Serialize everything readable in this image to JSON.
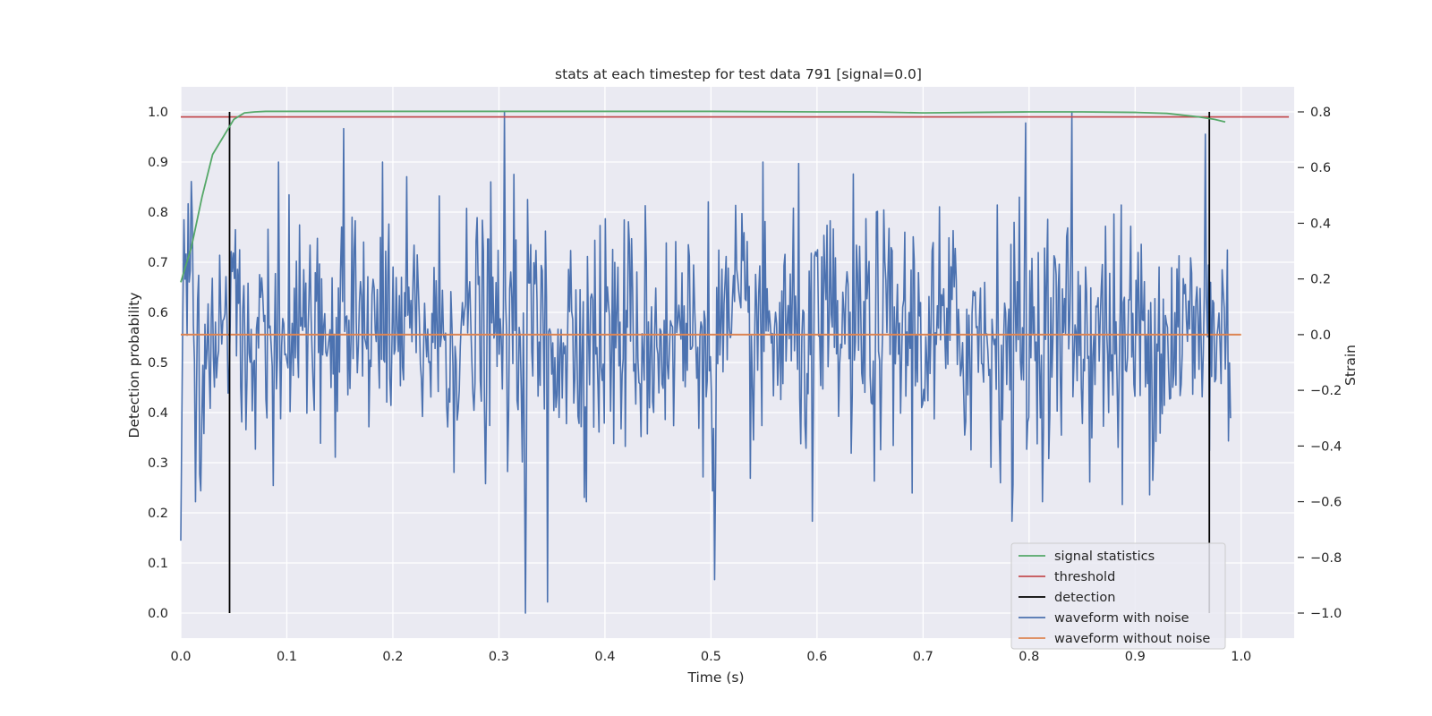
{
  "chart_data": {
    "type": "line",
    "title": "stats at each timestep for test data 791 [signal=0.0]",
    "xlabel": "Time (s)",
    "ylabel_left": "Detection probability",
    "ylabel_right": "Strain",
    "xlim": [
      0.0,
      1.05
    ],
    "ylim_left": [
      -0.05,
      1.05
    ],
    "ylim_right": [
      -1.09,
      0.89
    ],
    "x_ticks": [
      "0.0",
      "0.1",
      "0.2",
      "0.3",
      "0.4",
      "0.5",
      "0.6",
      "0.7",
      "0.8",
      "0.9",
      "1.0"
    ],
    "y_ticks_left": [
      "0.0",
      "0.1",
      "0.2",
      "0.3",
      "0.4",
      "0.5",
      "0.6",
      "0.7",
      "0.8",
      "0.9",
      "1.0"
    ],
    "y_ticks_right": [
      "−1.0",
      "−0.8",
      "−0.6",
      "−0.4",
      "−0.2",
      "0.0",
      "0.2",
      "0.4",
      "0.6",
      "0.8"
    ],
    "grid": true,
    "legend_position": "lower-right",
    "colors": {
      "background": "#eaeaf2",
      "grid": "#ffffff",
      "signal_statistics": "#55a868",
      "threshold": "#c44e52",
      "detection": "#000000",
      "waveform_with_noise": "#4c72b0",
      "waveform_without_noise": "#dd8452"
    },
    "series": [
      {
        "name": "signal statistics",
        "axis": "left",
        "x": [
          0.0,
          0.01,
          0.02,
          0.03,
          0.04,
          0.05,
          0.06,
          0.07,
          0.08,
          0.1,
          0.2,
          0.3,
          0.4,
          0.5,
          0.6,
          0.65,
          0.7,
          0.75,
          0.8,
          0.85,
          0.9,
          0.93,
          0.96,
          0.975,
          0.985
        ],
        "y": [
          0.66,
          0.73,
          0.83,
          0.915,
          0.95,
          0.985,
          0.998,
          1.0,
          1.001,
          1.001,
          1.001,
          1.001,
          1.001,
          1.001,
          1.0,
          1.0,
          0.998,
          0.999,
          1.0,
          1.0,
          0.999,
          0.997,
          0.99,
          0.985,
          0.98
        ]
      },
      {
        "name": "threshold",
        "axis": "left",
        "x": [
          0.0,
          1.045
        ],
        "y": [
          0.99,
          0.99
        ]
      },
      {
        "name": "detection",
        "axis": "left",
        "segments": [
          {
            "x": 0.046,
            "y": [
              0.0,
              1.0
            ]
          },
          {
            "x": 0.97,
            "y": [
              0.0,
              1.0
            ]
          }
        ]
      },
      {
        "name": "waveform with noise",
        "axis": "right",
        "x_range": [
          0.0,
          0.99
        ],
        "points": 1000,
        "y_range": [
          -1.0,
          0.8
        ],
        "peaks": [
          {
            "x": 0.0,
            "y": -0.74
          },
          {
            "x": 0.154,
            "y": 0.74
          },
          {
            "x": 0.305,
            "y": 0.8
          },
          {
            "x": 0.325,
            "y": -1.0
          },
          {
            "x": 0.346,
            "y": -0.96
          },
          {
            "x": 0.503,
            "y": -0.88
          },
          {
            "x": 0.596,
            "y": -0.67
          },
          {
            "x": 0.784,
            "y": -0.67
          },
          {
            "x": 0.797,
            "y": 0.76
          },
          {
            "x": 0.84,
            "y": 0.8
          },
          {
            "x": 0.888,
            "y": -0.61
          },
          {
            "x": 0.966,
            "y": 0.72
          },
          {
            "x": 0.99,
            "y": -0.3
          }
        ]
      },
      {
        "name": "waveform without noise",
        "axis": "right",
        "x": [
          0.0,
          1.0
        ],
        "y": [
          0.0,
          0.0
        ]
      }
    ],
    "legend": [
      "signal statistics",
      "threshold",
      "detection",
      "waveform with noise",
      "waveform without noise"
    ]
  }
}
